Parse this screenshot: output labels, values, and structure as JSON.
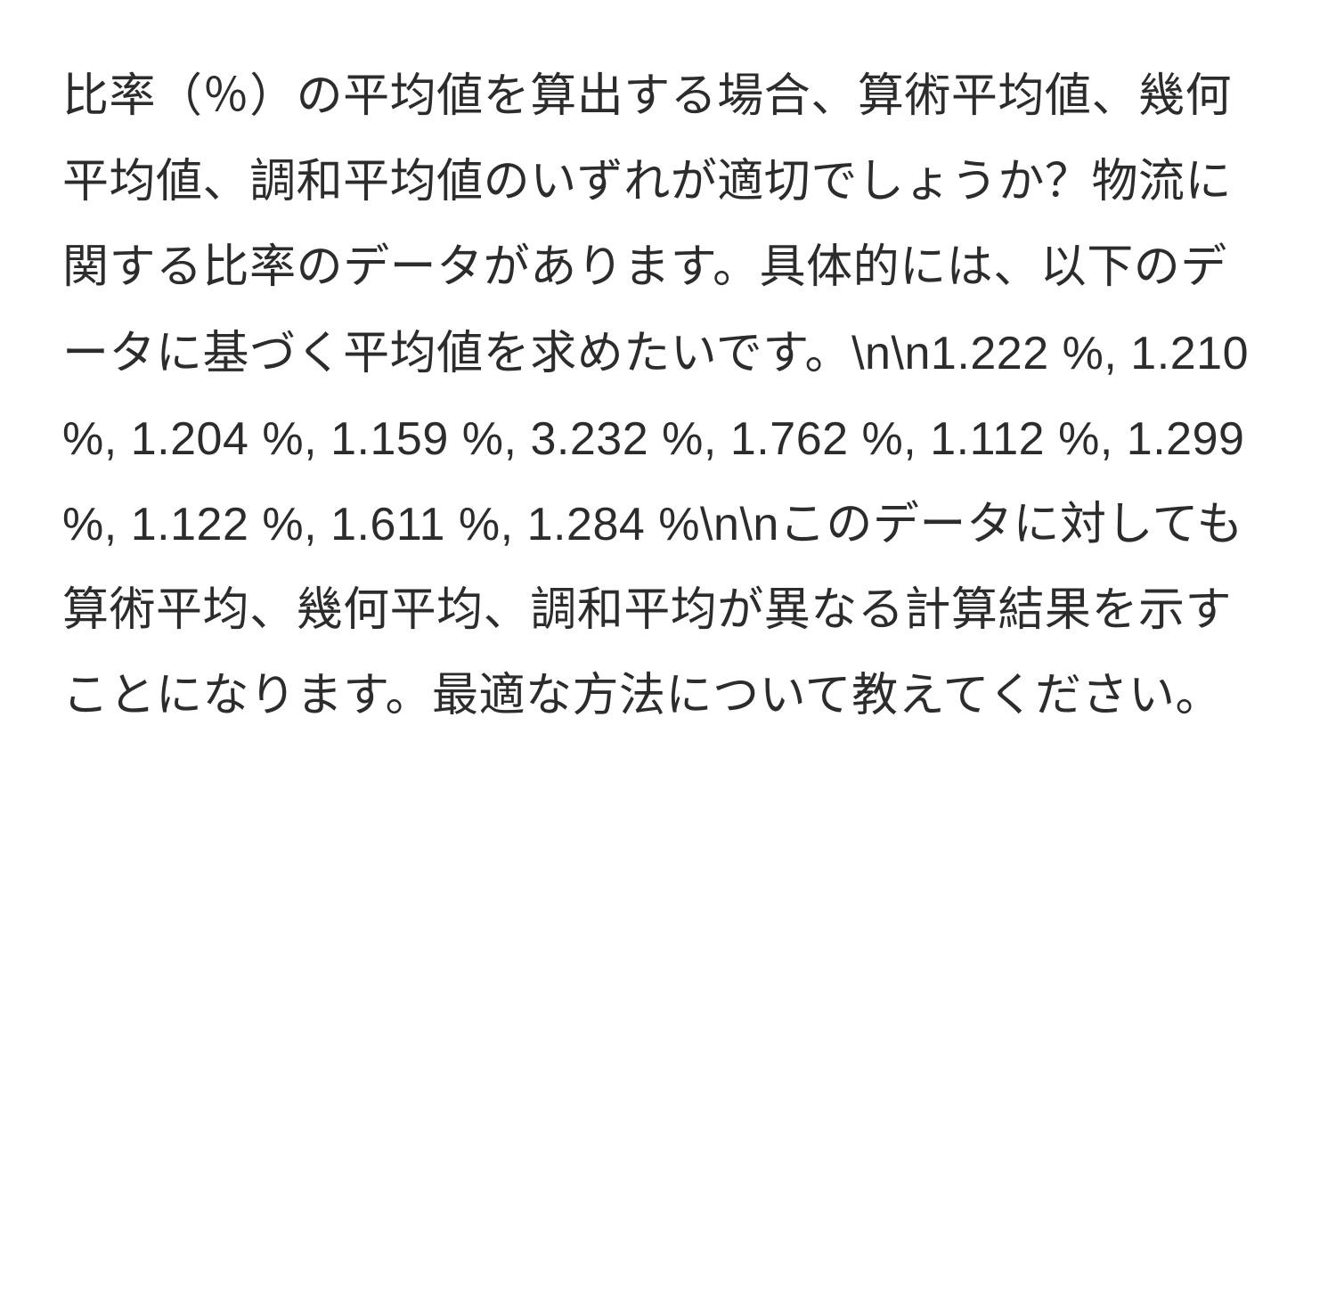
{
  "document": {
    "text_color": "#2c2c2e",
    "background_color": "#ffffff",
    "font_size": 52,
    "line_height": 1.85,
    "paragraphs": {
      "p1": "比率（％）の平均値を算出する場合、算術平均値、幾何平均値、調和平均値のいずれが適切でしょうか？物流に関する比率のデータがあります。具体的には、以下のデータに基づく平均値を求めたいです。\\n\\n",
      "p2": "1.222 %, 1.210 %, 1.204 %, 1.159 %, 3.232 %, 1.762 %, 1.112 %, 1.299 %, 1.122 %, 1.611 %, 1.284 %\\n\\n",
      "p3": "このデータに対しても算術平均、幾何平均、調和平均が異なる計算結果を示すことになります。最適な方法について教えてください。"
    },
    "data_values": [
      "1.222 %",
      "1.210 %",
      "1.204 %",
      "1.159 %",
      "3.232 %",
      "1.762 %",
      "1.112 %",
      "1.299 %",
      "1.122 %",
      "1.611 %",
      "1.284 %"
    ]
  }
}
